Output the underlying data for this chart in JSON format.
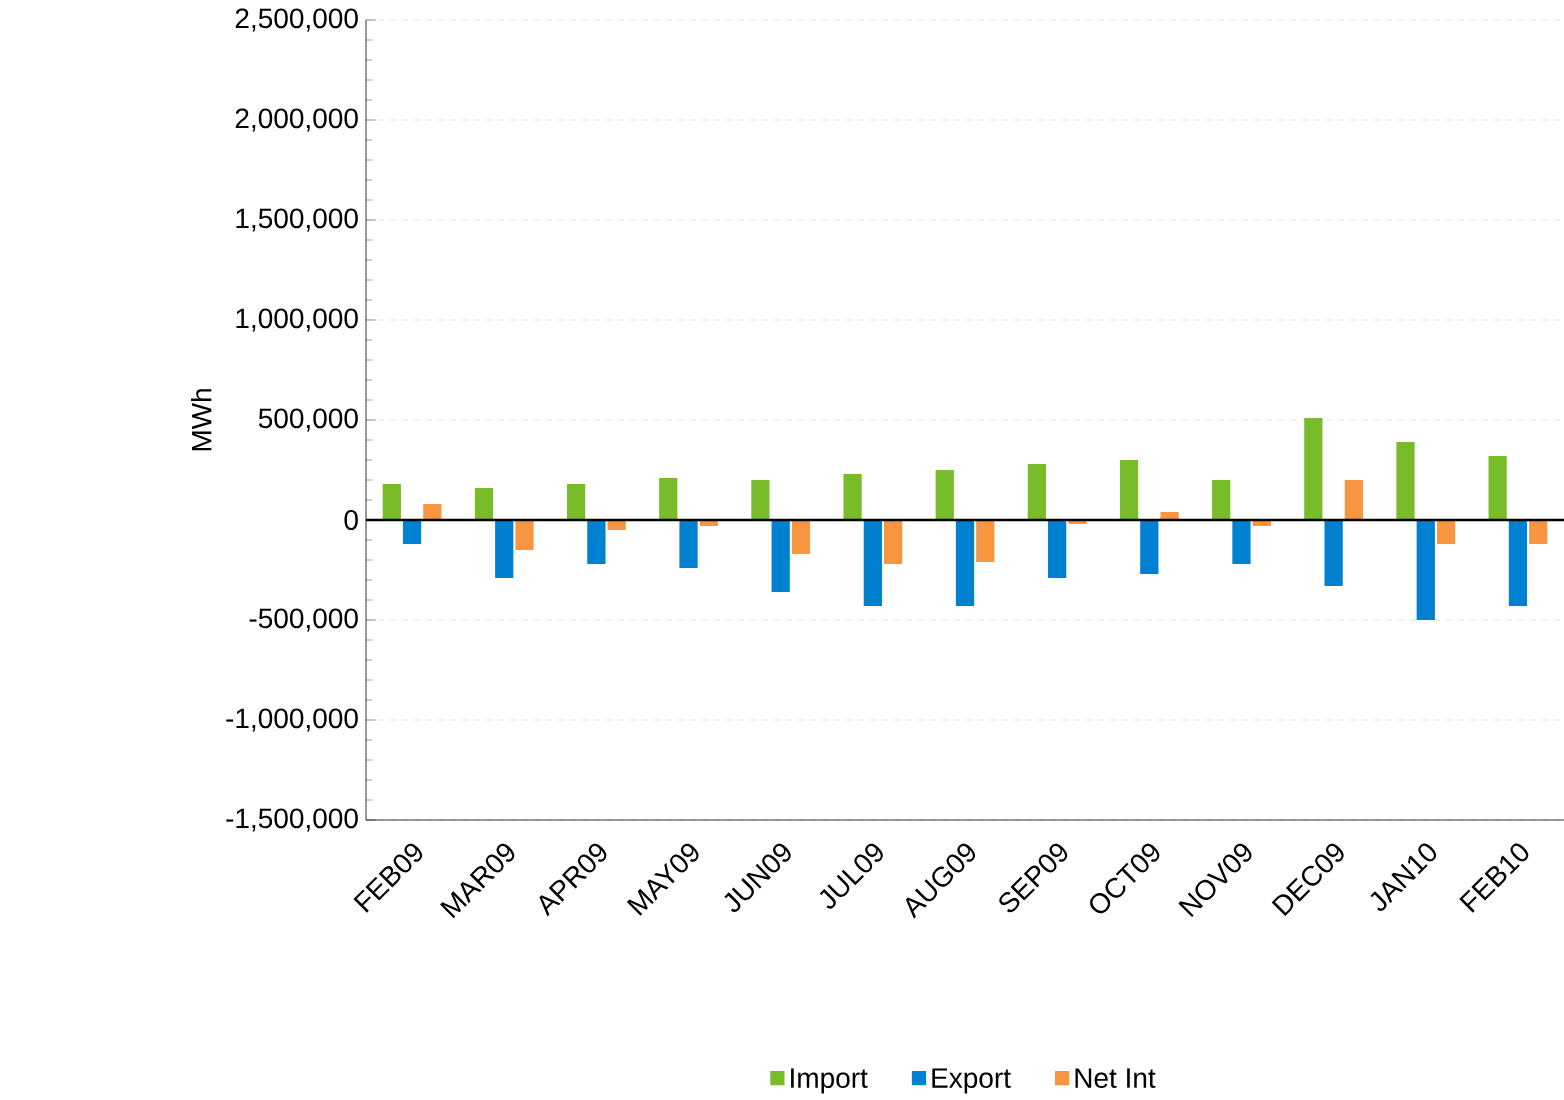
{
  "chart_data": {
    "type": "bar",
    "ylabel": "MWh",
    "categories": [
      "FEB09",
      "MAR09",
      "APR09",
      "MAY09",
      "JUN09",
      "JUL09",
      "AUG09",
      "SEP09",
      "OCT09",
      "NOV09",
      "DEC09",
      "JAN10",
      "FEB10"
    ],
    "series": [
      {
        "name": "Import",
        "color": "#78bc2a",
        "values": [
          180000,
          160000,
          180000,
          210000,
          200000,
          230000,
          250000,
          280000,
          300000,
          200000,
          510000,
          390000,
          320000
        ]
      },
      {
        "name": "Export",
        "color": "#0080d0",
        "values": [
          -120000,
          -290000,
          -220000,
          -240000,
          -360000,
          -430000,
          -430000,
          -290000,
          -270000,
          -220000,
          -330000,
          -500000,
          -430000
        ]
      },
      {
        "name": "Net Int",
        "color": "#f79540",
        "values": [
          80000,
          -150000,
          -50000,
          -30000,
          -170000,
          -220000,
          -210000,
          -20000,
          40000,
          -30000,
          200000,
          -120000,
          -120000
        ]
      }
    ],
    "ylim": [
      -1500000,
      2500000
    ],
    "yticks": [
      {
        "value": -1500000,
        "label": "-1,500,000"
      },
      {
        "value": -1000000,
        "label": "-1,000,000"
      },
      {
        "value": -500000,
        "label": "-500,000"
      },
      0,
      {
        "value": 500000,
        "label": "500,000"
      },
      {
        "value": 1000000,
        "label": "1,000,000"
      },
      {
        "value": 1500000,
        "label": "1,500,000"
      },
      {
        "value": 2000000,
        "label": "2,000,000"
      },
      {
        "value": 2500000,
        "label": "2,500,000"
      }
    ],
    "grid": "y",
    "legend": "bottom"
  }
}
